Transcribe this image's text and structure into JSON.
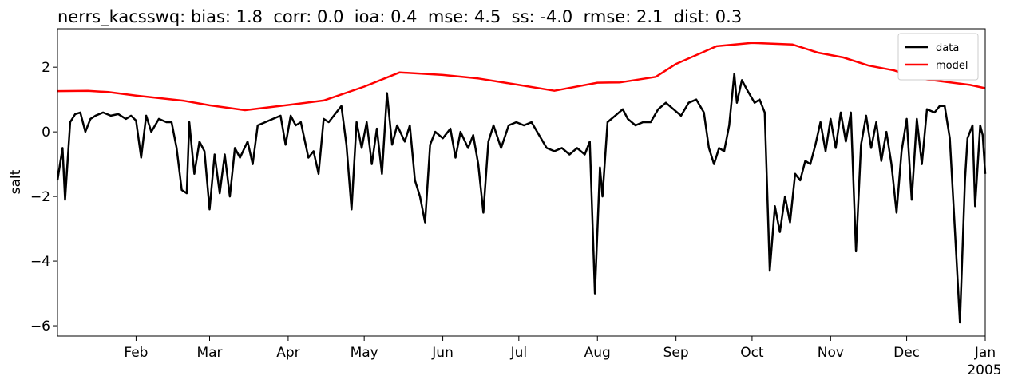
{
  "chart_data": {
    "type": "line",
    "title": "nerrs_kacsswq: bias: 1.8  corr: 0.0  ioa: 0.4  mse: 4.5  ss: -4.0  rmse: 2.1  dist: 0.3",
    "ylabel": "salt",
    "x_year_label": "2005",
    "xlim": [
      0,
      366
    ],
    "xticks": [
      {
        "value": 31,
        "label": "Feb"
      },
      {
        "value": 60,
        "label": "Mar"
      },
      {
        "value": 91,
        "label": "Apr"
      },
      {
        "value": 121,
        "label": "May"
      },
      {
        "value": 152,
        "label": "Jun"
      },
      {
        "value": 182,
        "label": "Jul"
      },
      {
        "value": 213,
        "label": "Aug"
      },
      {
        "value": 244,
        "label": "Sep"
      },
      {
        "value": 274,
        "label": "Oct"
      },
      {
        "value": 305,
        "label": "Nov"
      },
      {
        "value": 335,
        "label": "Dec"
      },
      {
        "value": 366,
        "label": "Jan"
      }
    ],
    "ylim": [
      -6.32,
      3.19
    ],
    "yticks": [
      {
        "value": -6,
        "label": "−6"
      },
      {
        "value": -4,
        "label": "−4"
      },
      {
        "value": -2,
        "label": "−2"
      },
      0,
      2
    ],
    "legend": "upper right",
    "series": [
      {
        "name": "data",
        "color": "#000000",
        "x": [
          0,
          2,
          3,
          5,
          7,
          9,
          11,
          13,
          15,
          18,
          21,
          24,
          27,
          29,
          31,
          33,
          35,
          37,
          40,
          43,
          45,
          47,
          49,
          51,
          52,
          54,
          56,
          58,
          60,
          62,
          64,
          66,
          68,
          70,
          72,
          75,
          77,
          79,
          82,
          85,
          88,
          90,
          92,
          94,
          96,
          99,
          101,
          103,
          105,
          107,
          110,
          112,
          114,
          116,
          118,
          120,
          122,
          124,
          126,
          128,
          130,
          132,
          134,
          137,
          139,
          141,
          143,
          145,
          147,
          149,
          152,
          155,
          157,
          159,
          162,
          164,
          166,
          168,
          170,
          172,
          175,
          178,
          181,
          184,
          187,
          190,
          193,
          196,
          199,
          202,
          205,
          208,
          210,
          212,
          214,
          215,
          217,
          220,
          223,
          225,
          228,
          231,
          234,
          237,
          240,
          243,
          246,
          249,
          252,
          255,
          257,
          259,
          261,
          263,
          265,
          267,
          268,
          270,
          272,
          275,
          277,
          279,
          281,
          283,
          285,
          287,
          289,
          291,
          293,
          295,
          297,
          299,
          301,
          303,
          305,
          307,
          309,
          311,
          313,
          315,
          317,
          319,
          321,
          323,
          325,
          327,
          329,
          331,
          333,
          335,
          337,
          339,
          341,
          343,
          346,
          348,
          350,
          352,
          354,
          356,
          358,
          359,
          361,
          362,
          364,
          365,
          366
        ],
        "values": [
          -1.5,
          -0.5,
          -2.1,
          0.3,
          0.55,
          0.6,
          0.0,
          0.4,
          0.5,
          0.6,
          0.5,
          0.55,
          0.4,
          0.5,
          0.35,
          -0.8,
          0.5,
          0.0,
          0.4,
          0.3,
          0.3,
          -0.5,
          -1.8,
          -1.9,
          0.3,
          -1.3,
          -0.3,
          -0.6,
          -2.4,
          -0.7,
          -1.9,
          -0.7,
          -2.0,
          -0.5,
          -0.8,
          -0.3,
          -1.0,
          0.2,
          0.3,
          0.4,
          0.5,
          -0.4,
          0.5,
          0.2,
          0.3,
          -0.8,
          -0.6,
          -1.3,
          0.4,
          0.3,
          0.6,
          0.8,
          -0.4,
          -2.4,
          0.3,
          -0.5,
          0.3,
          -1.0,
          0.1,
          -1.3,
          1.2,
          -0.4,
          0.2,
          -0.3,
          0.2,
          -1.5,
          -2.0,
          -2.8,
          -0.4,
          0.0,
          -0.2,
          0.1,
          -0.8,
          0.0,
          -0.5,
          -0.1,
          -1.0,
          -2.5,
          -0.3,
          0.2,
          -0.5,
          0.2,
          0.3,
          0.2,
          0.3,
          -0.1,
          -0.5,
          -0.6,
          -0.5,
          -0.7,
          -0.5,
          -0.7,
          -0.3,
          -5.0,
          -1.1,
          -2.0,
          0.3,
          0.5,
          0.7,
          0.4,
          0.2,
          0.3,
          0.3,
          0.7,
          0.9,
          0.7,
          0.5,
          0.9,
          1.0,
          0.6,
          -0.5,
          -1.0,
          -0.5,
          -0.6,
          0.2,
          1.8,
          0.9,
          1.6,
          1.3,
          0.9,
          1.0,
          0.6,
          -4.3,
          -2.3,
          -3.1,
          -2.0,
          -2.8,
          -1.3,
          -1.5,
          -0.9,
          -1.0,
          -0.4,
          0.3,
          -0.6,
          0.4,
          -0.5,
          0.6,
          -0.3,
          0.6,
          -3.7,
          -0.4,
          0.5,
          -0.5,
          0.3,
          -0.9,
          0.0,
          -1.0,
          -2.5,
          -0.6,
          0.4,
          -2.1,
          0.4,
          -1.0,
          0.7,
          0.6,
          0.8,
          0.8,
          -0.2,
          -3.0,
          -5.9,
          -1.5,
          -0.2,
          0.2,
          -2.3,
          0.2,
          -0.1,
          -1.3
        ]
      },
      {
        "name": "model",
        "color": "#ff0000",
        "x": [
          0,
          12,
          20,
          31,
          50,
          60,
          74,
          91,
          105,
          121,
          135,
          152,
          166,
          182,
          196,
          213,
          222,
          236,
          244,
          260,
          274,
          290,
          300,
          310,
          320,
          330,
          340,
          350,
          360,
          366
        ],
        "values": [
          1.26,
          1.27,
          1.23,
          1.12,
          0.96,
          0.82,
          0.67,
          0.83,
          0.97,
          1.4,
          1.84,
          1.76,
          1.65,
          1.45,
          1.27,
          1.52,
          1.53,
          1.7,
          2.1,
          2.65,
          2.75,
          2.7,
          2.45,
          2.3,
          2.05,
          1.9,
          1.65,
          1.55,
          1.45,
          1.35
        ]
      }
    ]
  }
}
